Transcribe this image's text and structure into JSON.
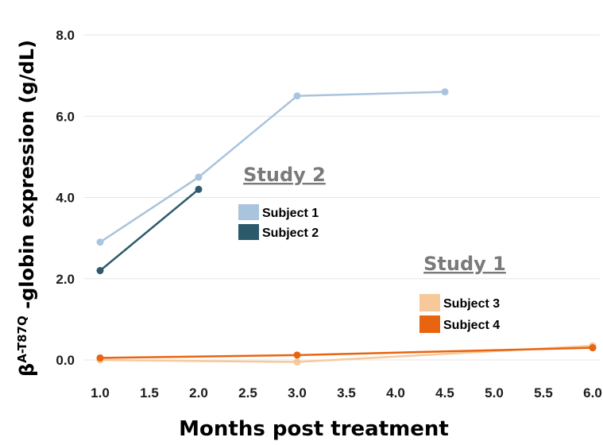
{
  "chart_data": {
    "type": "line",
    "xlabel": "Months post treatment",
    "ylabel_prefix": "β",
    "ylabel_sup": "A-T87Q",
    "ylabel_suffix": " -globin expression (g/dL)",
    "xlim": [
      1.0,
      6.0
    ],
    "ylim": [
      0.0,
      8.0
    ],
    "xticks": [
      "1.0",
      "1.5",
      "2.0",
      "2.5",
      "3.0",
      "3.5",
      "4.0",
      "4.5",
      "5.0",
      "5.5",
      "6.0"
    ],
    "yticks": [
      "0.0",
      "2.0",
      "4.0",
      "6.0",
      "8.0"
    ],
    "grid": true,
    "groups": [
      {
        "title": "Study 2",
        "series": [
          {
            "name": "Subject 1",
            "color": "#a9c4dc",
            "x": [
              1.0,
              2.0,
              3.0,
              4.5
            ],
            "y": [
              2.9,
              4.5,
              6.5,
              6.6
            ]
          },
          {
            "name": "Subject 2",
            "color": "#2d5a6b",
            "x": [
              1.0,
              2.0
            ],
            "y": [
              2.2,
              4.2
            ]
          }
        ]
      },
      {
        "title": "Study 1",
        "series": [
          {
            "name": "Subject 3",
            "color": "#f7c99a",
            "x": [
              1.0,
              3.0,
              6.0
            ],
            "y": [
              0.0,
              -0.05,
              0.35
            ]
          },
          {
            "name": "Subject 4",
            "color": "#e8640f",
            "x": [
              1.0,
              3.0,
              6.0
            ],
            "y": [
              0.05,
              0.12,
              0.3
            ]
          }
        ]
      }
    ]
  }
}
